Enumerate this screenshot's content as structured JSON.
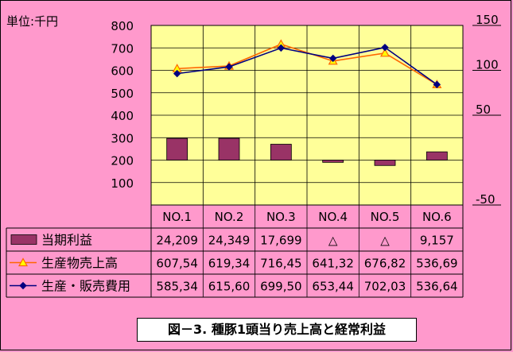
{
  "unit_label": "単位:千円",
  "caption": "図－3. 種豚1頭当り売上高と経常利益",
  "colors": {
    "background": "#ff99cc",
    "plot_area": "#ffff99",
    "bar": "#993366",
    "sales_line": "#ff6600",
    "sales_marker": "#ffff00",
    "cost_line": "#000080"
  },
  "chart_data": {
    "type": "bar",
    "categories": [
      "NO.1",
      "NO.2",
      "NO.3",
      "NO.4",
      "NO.5",
      "NO.6"
    ],
    "y_left": {
      "ticks": [
        "800",
        "700",
        "600",
        "500",
        "400",
        "300",
        "200",
        "100"
      ],
      "range": [
        0,
        800
      ]
    },
    "y_right": {
      "ticks": [
        "150",
        "100",
        "50",
        "-50"
      ],
      "range": [
        -50,
        150
      ]
    },
    "grid": true,
    "series": [
      {
        "name": "当期利益",
        "type": "bar",
        "axis": "right",
        "table_values": [
          "24,209",
          "24,349",
          "17,699",
          "△",
          "△",
          "9,157"
        ],
        "plot_values": [
          24.2,
          24.3,
          17.7,
          -2.5,
          -6.0,
          9.2
        ]
      },
      {
        "name": "生産物売上高",
        "type": "line",
        "axis": "left",
        "table_values": [
          "607,54",
          "619,34",
          "716,45",
          "641,32",
          "676,82",
          "536,69"
        ],
        "plot_values": [
          607.54,
          619.34,
          716.45,
          641.32,
          676.82,
          536.69
        ]
      },
      {
        "name": "生産・販売費用",
        "type": "line",
        "axis": "left",
        "table_values": [
          "585,34",
          "615,60",
          "699,50",
          "653,44",
          "702,03",
          "536,64"
        ],
        "plot_values": [
          585.34,
          615.6,
          699.5,
          653.44,
          702.03,
          536.64
        ]
      }
    ]
  }
}
